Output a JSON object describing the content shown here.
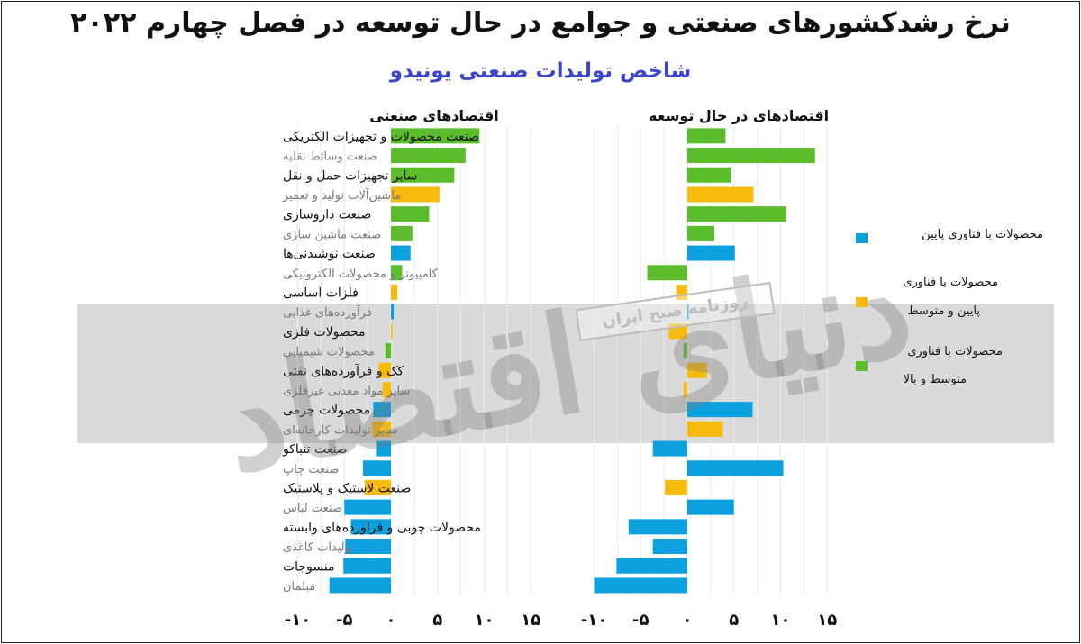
{
  "title": "نرخ رشدکشورهای صنعتی و جوامع در حال توسعه در فصل چهارم ۲۰۲۲",
  "subtitle": "شاخص تولیدات صنعتی یونیدو",
  "watermark": {
    "stamp": "روزنامه صبح ایران",
    "word": "دنیای اقتصاد"
  },
  "colors": {
    "low": "#0ca0df",
    "mid_low": "#f7bb0e",
    "mid_high": "#5bbd2b",
    "band": "#d6d6d6",
    "grid": "#ececec"
  },
  "legend": [
    {
      "key": "low",
      "label": "محصولات با فناوری پایین"
    },
    {
      "key": "mid_low",
      "label_lines": [
        "محصولات با فناوری",
        "پایین و متوسط"
      ]
    },
    {
      "key": "mid_high",
      "label_lines": [
        "محصولات با فناوری",
        "متوسط و بالا"
      ]
    }
  ],
  "chart_data": {
    "type": "bar",
    "orientation": "horizontal",
    "categories": [
      "صنعت محصولات و تجهیزات الکتریکی",
      "صنعت وسائط نقلیه",
      "سایر تجهیزات حمل و نقل",
      "ماشین‌آلات تولید و تعمیر",
      "صنعت داروسازی",
      "صنعت ماشین سازی",
      "صنعت نوشیدنی‌ها",
      "کامپیوتر و محصولات الکترونیکی",
      "فلزات اساسی",
      "فرآورده‌های غذایی",
      "محصولات فلزی",
      "محصولات شیمیایی",
      "کک و فرآورده‌های نفتی",
      "سایر مواد معدنی غیرفلزی",
      "محصولات چرمی",
      "سایر تولیدات کارخانه‌ای",
      "صنعت تنباکو",
      "صنعت چاپ",
      "صنعت لاستیک و پلاستیک",
      "صنعت لباس",
      "محصولات چوبی و فراورده‌های وابسته",
      "تولیدات کاغذی",
      "منسوجات",
      "مبلمان"
    ],
    "tech_class": [
      "mid_high",
      "mid_high",
      "mid_high",
      "mid_low",
      "mid_high",
      "mid_high",
      "low",
      "mid_high",
      "mid_low",
      "low",
      "mid_low",
      "mid_high",
      "mid_low",
      "mid_low",
      "low",
      "mid_low",
      "low",
      "low",
      "mid_low",
      "low",
      "low",
      "low",
      "low",
      "low"
    ],
    "panels": [
      {
        "name": "اقتصادهای صنعتی",
        "values": [
          9.5,
          8,
          6.8,
          5.2,
          4.1,
          2.3,
          2.1,
          1.2,
          0.7,
          0.3,
          0.1,
          -0.6,
          -1.3,
          -0.9,
          -1.9,
          -2.0,
          -1.6,
          -3.0,
          -2.8,
          -5.0,
          -4.3,
          -4.9,
          -5.1,
          -6.6
        ]
      },
      {
        "name": "اقتصادهای در حال توسعه",
        "values": [
          4.1,
          13.7,
          4.7,
          7.1,
          10.6,
          2.9,
          5.1,
          -4.3,
          -1.2,
          0.1,
          -2.0,
          -0.4,
          2.1,
          -0.4,
          7.0,
          3.8,
          -3.7,
          10.3,
          -2.4,
          5.0,
          -6.3,
          -3.7,
          -7.6,
          -10.0
        ]
      }
    ],
    "x_ticks": [
      "-۱۰",
      "-۵",
      "۰",
      "۵",
      "۱۰",
      "۱۵"
    ],
    "x_tick_values": [
      -10,
      -5,
      0,
      5,
      10,
      15
    ],
    "xlim": [
      -10,
      15
    ],
    "grid": true
  }
}
